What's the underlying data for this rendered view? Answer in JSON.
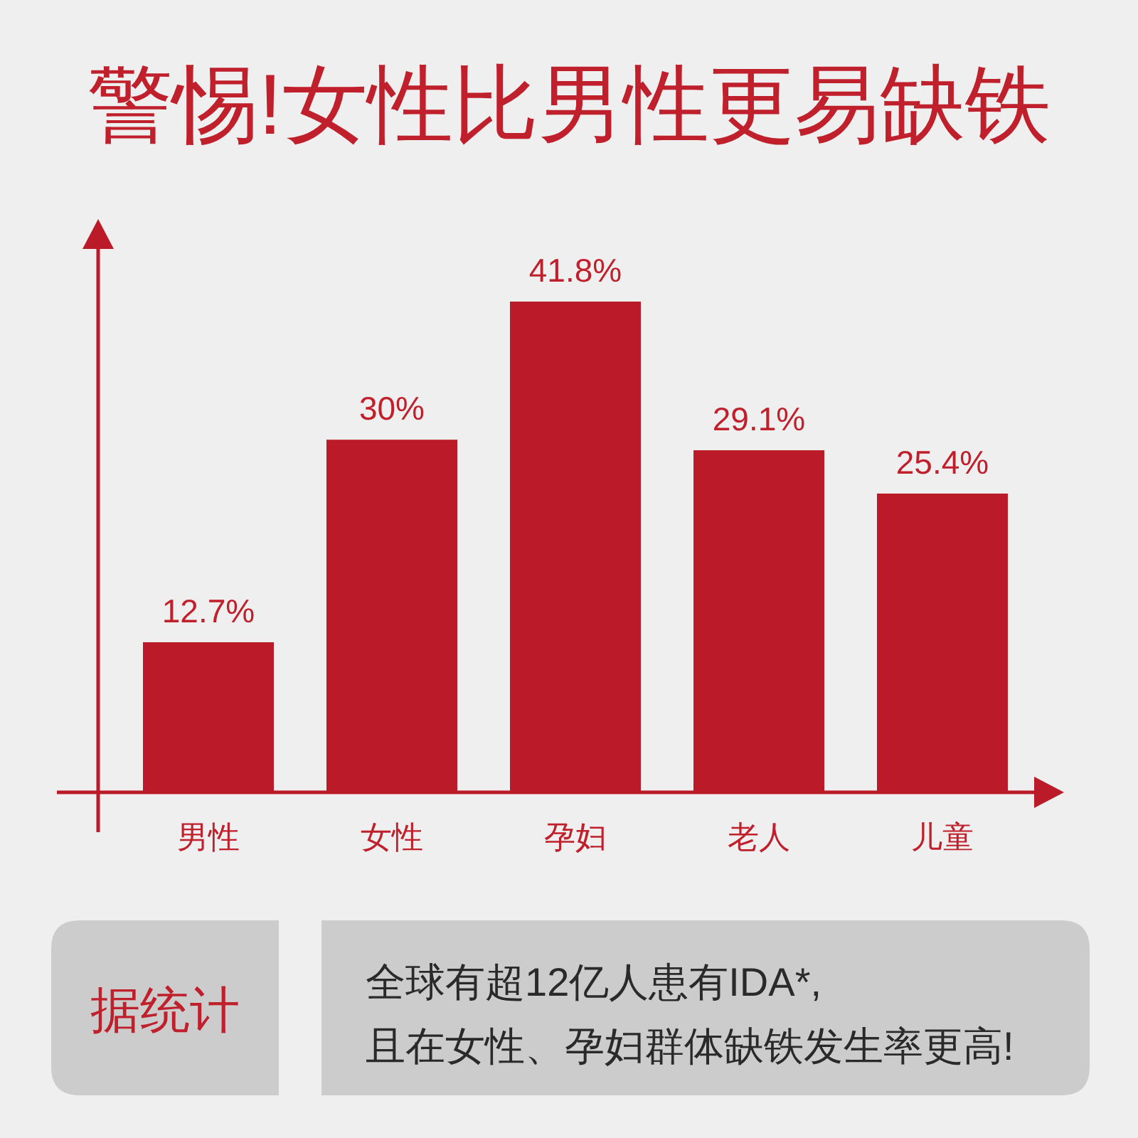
{
  "chart_data": {
    "type": "bar",
    "title": "警惕!女性比男性更易缺铁",
    "categories": [
      "男性",
      "女性",
      "孕妇",
      "老人",
      "儿童"
    ],
    "values": [
      12.7,
      30,
      41.8,
      29.1,
      25.4
    ],
    "value_labels": [
      "12.7%",
      "30%",
      "41.8%",
      "29.1%",
      "25.4%"
    ],
    "color": "#bb1a28",
    "annotations": [
      "据统计",
      "全球有超12亿人患有IDA*,",
      "且在女性、孕妇群体缺铁发生率更高!"
    ]
  }
}
